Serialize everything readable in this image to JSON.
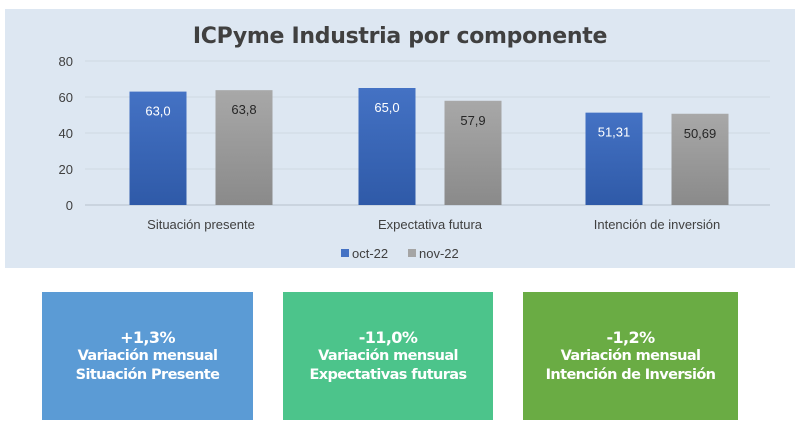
{
  "chart_data": {
    "type": "bar",
    "title": "ICPyme Industria por componente",
    "categories": [
      "Situación presente",
      "Expectativa futura",
      "Intención de inversión"
    ],
    "series": [
      {
        "name": "oct-22",
        "values": [
          63.0,
          65.0,
          51.31
        ],
        "labels": [
          "63,0",
          "65,0",
          "51,31"
        ],
        "color": "#4472c4"
      },
      {
        "name": "nov-22",
        "values": [
          63.8,
          57.9,
          50.69
        ],
        "labels": [
          "63,8",
          "57,9",
          "50,69"
        ],
        "color": "#a5a5a5"
      }
    ],
    "ylim": [
      0,
      80
    ],
    "yticks": [
      "0",
      "20",
      "40",
      "60",
      "80"
    ],
    "grid": true,
    "legend": "bottom",
    "xlabel": "",
    "ylabel": ""
  },
  "cards": [
    {
      "value": "+1,3%",
      "line1": "Variación mensual",
      "line2": "Situación Presente",
      "color": "#5b9bd5"
    },
    {
      "value": "-11,0%",
      "line1": "Variación mensual",
      "line2": "Expectativas futuras",
      "color": "#4cc48b"
    },
    {
      "value": "-1,2%",
      "line1": "Variación mensual",
      "line2": "Intención de Inversión",
      "color": "#6aac44"
    }
  ]
}
